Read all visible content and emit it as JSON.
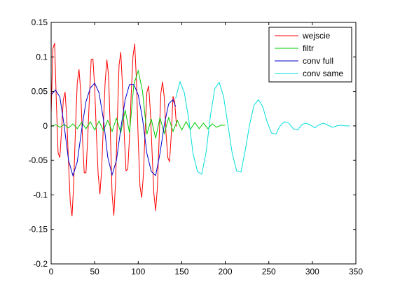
{
  "chart_data": {
    "type": "line",
    "title": "",
    "xlabel": "",
    "ylabel": "",
    "xlim": [
      0,
      350
    ],
    "ylim": [
      -0.2,
      0.15
    ],
    "grid": false,
    "legend_position": "top-right",
    "x_ticks": [
      0,
      50,
      100,
      150,
      200,
      250,
      300,
      350
    ],
    "y_ticks": [
      -0.2,
      -0.15,
      -0.1,
      -0.05,
      0,
      0.05,
      0.1,
      0.15
    ],
    "series": [
      {
        "name": "wejscie",
        "color": "#ff0000",
        "x": [
          0,
          2,
          4,
          6,
          8,
          10,
          12,
          14,
          16,
          18,
          20,
          22,
          24,
          26,
          28,
          30,
          32,
          34,
          36,
          38,
          40,
          42,
          44,
          46,
          48,
          50,
          52,
          54,
          56,
          58,
          60,
          62,
          64,
          66,
          68,
          70,
          72,
          74,
          76,
          78,
          80,
          82,
          84,
          86,
          88,
          90,
          92,
          94,
          96,
          98,
          100,
          102,
          104,
          106,
          108,
          110,
          112,
          114,
          116,
          118,
          120,
          122,
          124,
          126,
          128,
          130,
          132,
          134,
          136,
          138,
          140,
          142,
          144
        ],
        "y": [
          0.018,
          0.112,
          0.12,
          0.034,
          -0.039,
          -0.046,
          -0.006,
          0.038,
          0.049,
          0.011,
          -0.055,
          -0.111,
          -0.131,
          -0.081,
          -0.002,
          0.063,
          0.082,
          0.049,
          -0.017,
          -0.068,
          -0.068,
          -0.018,
          0.043,
          0.096,
          0.097,
          0.056,
          -0.012,
          -0.07,
          -0.099,
          -0.064,
          0.001,
          0.063,
          0.096,
          0.072,
          -0.009,
          -0.099,
          -0.13,
          -0.081,
          0.007,
          0.088,
          0.107,
          0.056,
          -0.013,
          -0.065,
          -0.063,
          -0.016,
          0.047,
          0.101,
          0.119,
          0.065,
          -0.02,
          -0.087,
          -0.104,
          -0.07,
          -0.004,
          0.049,
          0.058,
          0.02,
          -0.04,
          -0.098,
          -0.123,
          -0.09,
          -0.02,
          0.047,
          0.064,
          0.04,
          -0.012,
          -0.046,
          -0.052,
          -0.012,
          0.043,
          0.034,
          -0.001
        ]
      },
      {
        "name": "filtr",
        "color": "#00cc00",
        "x": [
          0,
          5,
          10,
          15,
          20,
          25,
          30,
          35,
          40,
          45,
          50,
          55,
          60,
          65,
          70,
          75,
          80,
          85,
          90,
          95,
          100,
          105,
          110,
          115,
          120,
          125,
          130,
          135,
          140,
          145,
          150,
          155,
          160,
          165,
          170,
          175,
          180,
          185,
          190,
          195,
          200
        ],
        "y": [
          -0.001,
          0.002,
          -0.002,
          0.002,
          -0.003,
          0.003,
          -0.004,
          0.005,
          -0.004,
          0.006,
          -0.006,
          0.007,
          -0.007,
          0.008,
          -0.008,
          0.011,
          -0.01,
          0.023,
          -0.01,
          0.06,
          0.08,
          0.05,
          -0.012,
          0.01,
          -0.018,
          0.012,
          -0.011,
          0.012,
          -0.008,
          0.008,
          -0.006,
          0.006,
          -0.005,
          0.005,
          -0.004,
          0.004,
          -0.004,
          0.003,
          -0.002,
          0.001,
          0.001
        ]
      },
      {
        "name": "conv full",
        "color": "#0000cc",
        "x": [
          0,
          5,
          10,
          15,
          20,
          25,
          30,
          35,
          40,
          45,
          50,
          55,
          60,
          65,
          70,
          75,
          80,
          85,
          90,
          95,
          100,
          105,
          110,
          115,
          120,
          125,
          130,
          135,
          140,
          143
        ],
        "y": [
          0.045,
          0.052,
          0.042,
          0.0,
          -0.05,
          -0.072,
          -0.052,
          -0.006,
          0.035,
          0.055,
          0.062,
          0.048,
          0.01,
          -0.045,
          -0.071,
          -0.05,
          -0.004,
          0.038,
          0.06,
          0.06,
          0.045,
          0.01,
          -0.04,
          -0.066,
          -0.072,
          -0.04,
          0.002,
          0.032,
          0.038,
          0.028
        ]
      },
      {
        "name": "conv same",
        "color": "#00dddd",
        "x": [
          143,
          148,
          153,
          158,
          163,
          168,
          173,
          178,
          183,
          188,
          193,
          198,
          203,
          208,
          213,
          218,
          223,
          228,
          233,
          238,
          243,
          248,
          253,
          258,
          263,
          268,
          273,
          278,
          283,
          288,
          293,
          298,
          303,
          308,
          313,
          318,
          323,
          328,
          333,
          338,
          343
        ],
        "y": [
          0.04,
          0.064,
          0.048,
          0.01,
          -0.04,
          -0.066,
          -0.07,
          -0.038,
          0.015,
          0.054,
          0.063,
          0.043,
          0.002,
          -0.04,
          -0.065,
          -0.067,
          -0.035,
          0.002,
          0.03,
          0.038,
          0.028,
          0.006,
          -0.01,
          -0.012,
          0.0,
          0.006,
          0.004,
          -0.004,
          -0.006,
          0.002,
          0.004,
          0.001,
          -0.003,
          0.002,
          0.004,
          0.001,
          -0.002,
          0.0,
          0.001,
          0.0,
          0.0
        ]
      }
    ]
  }
}
